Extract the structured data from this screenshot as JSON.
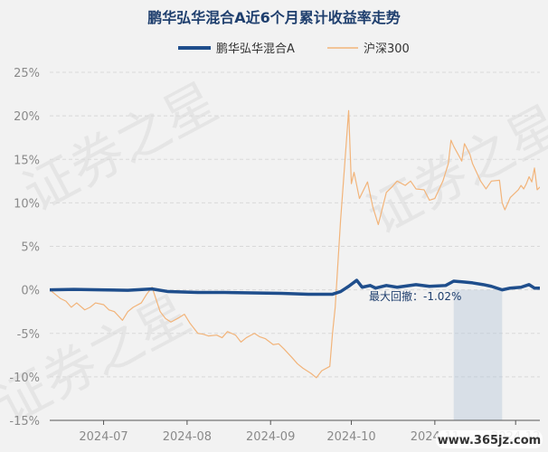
{
  "chart_data": {
    "type": "line",
    "title": "鹏华弘华混合A近6个月累计收益率走势",
    "legend": [
      {
        "name": "鹏华弘华混合A",
        "color": "#1f4e8c"
      },
      {
        "name": "沪深300",
        "color": "#f2b47a"
      }
    ],
    "legend_position": "top-center",
    "y_axis": {
      "min": -15,
      "max": 25,
      "step": 5,
      "tick_labels": [
        "-15%",
        "-10%",
        "-5%",
        "0%",
        "5%",
        "10%",
        "15%",
        "20%",
        "25%"
      ]
    },
    "x_axis": {
      "min": "2024-06-11",
      "max": "2024-12-10",
      "ticks": [
        {
          "date": "2024-07-01",
          "label": "2024-07"
        },
        {
          "date": "2024-08-01",
          "label": "2024-08"
        },
        {
          "date": "2024-09-01",
          "label": "2024-09"
        },
        {
          "date": "2024-10-01",
          "label": "2024-10"
        },
        {
          "date": "2024-11-01",
          "label": "2024-11"
        },
        {
          "date": "2024-12-01",
          "label": "2024-12"
        }
      ]
    },
    "grid": {
      "horizontal": true,
      "vertical": false
    },
    "series": [
      {
        "name": "沪深300",
        "color": "#f2b47a",
        "points": [
          [
            "2024-06-11",
            0.0
          ],
          [
            "2024-06-13",
            -0.5
          ],
          [
            "2024-06-15",
            -1.0
          ],
          [
            "2024-06-17",
            -1.3
          ],
          [
            "2024-06-19",
            -2.0
          ],
          [
            "2024-06-21",
            -1.5
          ],
          [
            "2024-06-24",
            -2.3
          ],
          [
            "2024-06-26",
            -2.0
          ],
          [
            "2024-06-28",
            -1.5
          ],
          [
            "2024-07-01",
            -1.7
          ],
          [
            "2024-07-03",
            -2.3
          ],
          [
            "2024-07-05",
            -2.5
          ],
          [
            "2024-07-08",
            -3.5
          ],
          [
            "2024-07-10",
            -2.5
          ],
          [
            "2024-07-12",
            -2.0
          ],
          [
            "2024-07-15",
            -1.5
          ],
          [
            "2024-07-17",
            -0.5
          ],
          [
            "2024-07-19",
            0.3
          ],
          [
            "2024-07-22",
            -2.5
          ],
          [
            "2024-07-24",
            -3.3
          ],
          [
            "2024-07-26",
            -3.7
          ],
          [
            "2024-07-29",
            -3.2
          ],
          [
            "2024-07-31",
            -2.8
          ],
          [
            "2024-08-02",
            -3.8
          ],
          [
            "2024-08-05",
            -5.0
          ],
          [
            "2024-08-07",
            -5.1
          ],
          [
            "2024-08-09",
            -5.3
          ],
          [
            "2024-08-12",
            -5.2
          ],
          [
            "2024-08-14",
            -5.5
          ],
          [
            "2024-08-16",
            -4.8
          ],
          [
            "2024-08-19",
            -5.2
          ],
          [
            "2024-08-21",
            -6.0
          ],
          [
            "2024-08-23",
            -5.5
          ],
          [
            "2024-08-26",
            -5.0
          ],
          [
            "2024-08-28",
            -5.4
          ],
          [
            "2024-08-30",
            -5.6
          ],
          [
            "2024-09-02",
            -6.3
          ],
          [
            "2024-09-04",
            -6.2
          ],
          [
            "2024-09-06",
            -6.8
          ],
          [
            "2024-09-09",
            -7.8
          ],
          [
            "2024-09-11",
            -8.5
          ],
          [
            "2024-09-13",
            -9.0
          ],
          [
            "2024-09-16",
            -9.6
          ],
          [
            "2024-09-18",
            -10.1
          ],
          [
            "2024-09-20",
            -9.3
          ],
          [
            "2024-09-23",
            -8.8
          ],
          [
            "2024-09-24",
            -5.0
          ],
          [
            "2024-09-25",
            -2.0
          ],
          [
            "2024-09-26",
            3.0
          ],
          [
            "2024-09-27",
            8.0
          ],
          [
            "2024-09-30",
            20.6
          ],
          [
            "2024-10-01",
            12.2
          ],
          [
            "2024-10-02",
            13.5
          ],
          [
            "2024-10-04",
            10.5
          ],
          [
            "2024-10-07",
            12.4
          ],
          [
            "2024-10-09",
            9.5
          ],
          [
            "2024-10-11",
            7.5
          ],
          [
            "2024-10-14",
            11.2
          ],
          [
            "2024-10-16",
            11.8
          ],
          [
            "2024-10-18",
            12.5
          ],
          [
            "2024-10-21",
            12.0
          ],
          [
            "2024-10-23",
            12.5
          ],
          [
            "2024-10-25",
            11.6
          ],
          [
            "2024-10-28",
            11.5
          ],
          [
            "2024-10-30",
            10.3
          ],
          [
            "2024-11-01",
            10.5
          ],
          [
            "2024-11-04",
            12.5
          ],
          [
            "2024-11-06",
            14.5
          ],
          [
            "2024-11-07",
            17.2
          ],
          [
            "2024-11-08",
            16.5
          ],
          [
            "2024-11-11",
            14.8
          ],
          [
            "2024-11-12",
            16.8
          ],
          [
            "2024-11-14",
            15.6
          ],
          [
            "2024-11-15",
            14.5
          ],
          [
            "2024-11-18",
            12.5
          ],
          [
            "2024-11-20",
            11.6
          ],
          [
            "2024-11-22",
            12.5
          ],
          [
            "2024-11-25",
            12.6
          ],
          [
            "2024-11-26",
            10.0
          ],
          [
            "2024-11-27",
            9.2
          ],
          [
            "2024-11-29",
            10.6
          ],
          [
            "2024-12-02",
            11.5
          ],
          [
            "2024-12-03",
            12.0
          ],
          [
            "2024-12-04",
            11.6
          ],
          [
            "2024-12-05",
            12.2
          ],
          [
            "2024-12-06",
            13.0
          ],
          [
            "2024-12-07",
            12.4
          ],
          [
            "2024-12-08",
            14.0
          ],
          [
            "2024-12-09",
            11.5
          ],
          [
            "2024-12-10",
            11.8
          ]
        ]
      },
      {
        "name": "鹏华弘华混合A",
        "color": "#1f4e8c",
        "points": [
          [
            "2024-06-11",
            0.0
          ],
          [
            "2024-06-20",
            0.05
          ],
          [
            "2024-06-30",
            0.0
          ],
          [
            "2024-07-10",
            -0.05
          ],
          [
            "2024-07-19",
            0.1
          ],
          [
            "2024-07-25",
            -0.2
          ],
          [
            "2024-08-05",
            -0.3
          ],
          [
            "2024-08-15",
            -0.3
          ],
          [
            "2024-08-25",
            -0.35
          ],
          [
            "2024-09-05",
            -0.4
          ],
          [
            "2024-09-15",
            -0.5
          ],
          [
            "2024-09-24",
            -0.5
          ],
          [
            "2024-09-27",
            -0.2
          ],
          [
            "2024-09-30",
            0.4
          ],
          [
            "2024-10-03",
            1.1
          ],
          [
            "2024-10-05",
            0.3
          ],
          [
            "2024-10-08",
            0.5
          ],
          [
            "2024-10-10",
            0.2
          ],
          [
            "2024-10-14",
            0.5
          ],
          [
            "2024-10-18",
            0.3
          ],
          [
            "2024-10-25",
            0.6
          ],
          [
            "2024-10-30",
            0.4
          ],
          [
            "2024-11-05",
            0.5
          ],
          [
            "2024-11-08",
            1.0
          ],
          [
            "2024-11-12",
            0.9
          ],
          [
            "2024-11-15",
            0.8
          ],
          [
            "2024-11-19",
            0.6
          ],
          [
            "2024-11-22",
            0.4
          ],
          [
            "2024-11-26",
            0.0
          ],
          [
            "2024-11-29",
            0.2
          ],
          [
            "2024-12-03",
            0.3
          ],
          [
            "2024-12-06",
            0.6
          ],
          [
            "2024-12-08",
            0.2
          ],
          [
            "2024-12-10",
            0.2
          ]
        ]
      }
    ],
    "annotations": [
      {
        "type": "max-drawdown-band",
        "x_start": "2024-11-08",
        "x_end": "2024-11-26",
        "label": "最大回撤：-1.02%"
      }
    ],
    "watermark": [
      "证券之星",
      "证券之星",
      "证券之星"
    ],
    "source_badge": "www.365jz.com"
  }
}
